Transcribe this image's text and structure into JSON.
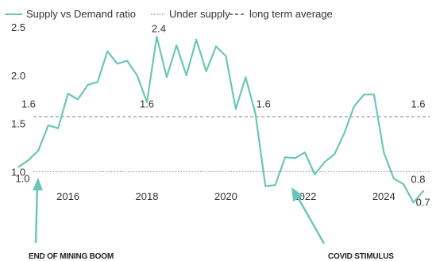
{
  "chart_data": {
    "type": "line",
    "title": "",
    "xlabel": "",
    "ylabel": "",
    "xlim": [
      2014.6,
      2025.0
    ],
    "ylim": [
      0.6,
      2.6
    ],
    "yticks": [
      {
        "value": 1.0,
        "label": "1.0"
      },
      {
        "value": 1.5,
        "label": "1.5"
      },
      {
        "value": 2.0,
        "label": "2.0"
      },
      {
        "value": 2.5,
        "label": "2.5"
      }
    ],
    "xticks": [
      {
        "value": 2016,
        "label": "2016"
      },
      {
        "value": 2018,
        "label": "2018"
      },
      {
        "value": 2020,
        "label": "2020"
      },
      {
        "value": 2022,
        "label": "2022"
      },
      {
        "value": 2024,
        "label": "2024"
      }
    ],
    "grid": false,
    "legend": {
      "placement": "top-left",
      "entries": [
        {
          "label": "Supply vs Demand ratio",
          "style": "solid",
          "color": "#6cc6b8"
        },
        {
          "label": "Under supply",
          "style": "dotted",
          "color": "#9a9a9a"
        },
        {
          "label": "long term average",
          "style": "dashed",
          "color": "#555555"
        }
      ]
    },
    "reference_lines": [
      {
        "name": "long term average",
        "value": 1.57,
        "style": "dashed",
        "color": "#9a9a9a"
      },
      {
        "name": "Under supply",
        "value": 1.0,
        "style": "dotted",
        "color": "#9a9a9a"
      }
    ],
    "series": [
      {
        "name": "Supply vs Demand ratio",
        "color": "#6cc6b8",
        "points": [
          [
            2014.75,
            1.05
          ],
          [
            2015.0,
            1.12
          ],
          [
            2015.25,
            1.22
          ],
          [
            2015.5,
            1.48
          ],
          [
            2015.75,
            1.45
          ],
          [
            2016.0,
            1.81
          ],
          [
            2016.25,
            1.75
          ],
          [
            2016.5,
            1.9
          ],
          [
            2016.75,
            1.93
          ],
          [
            2017.0,
            2.25
          ],
          [
            2017.25,
            2.12
          ],
          [
            2017.5,
            2.15
          ],
          [
            2017.75,
            2.0
          ],
          [
            2018.0,
            1.72
          ],
          [
            2018.25,
            2.4
          ],
          [
            2018.5,
            1.98
          ],
          [
            2018.75,
            2.31
          ],
          [
            2019.0,
            2.0
          ],
          [
            2019.25,
            2.37
          ],
          [
            2019.5,
            2.04
          ],
          [
            2019.75,
            2.3
          ],
          [
            2020.0,
            2.2
          ],
          [
            2020.25,
            1.65
          ],
          [
            2020.5,
            1.98
          ],
          [
            2020.75,
            1.6
          ],
          [
            2021.0,
            0.85
          ],
          [
            2021.25,
            0.86
          ],
          [
            2021.5,
            1.15
          ],
          [
            2021.75,
            1.14
          ],
          [
            2022.0,
            1.2
          ],
          [
            2022.25,
            0.97
          ],
          [
            2022.5,
            1.1
          ],
          [
            2022.75,
            1.18
          ],
          [
            2023.0,
            1.4
          ],
          [
            2023.25,
            1.68
          ],
          [
            2023.5,
            1.8
          ],
          [
            2023.75,
            1.8
          ],
          [
            2024.0,
            1.2
          ],
          [
            2024.25,
            0.93
          ],
          [
            2024.5,
            0.87
          ],
          [
            2024.75,
            0.68
          ],
          [
            2025.0,
            0.8
          ]
        ]
      }
    ],
    "data_labels": [
      {
        "text": "1.6",
        "x": 2015.0,
        "y": 1.6
      },
      {
        "text": "1.6",
        "x": 2018.0,
        "y": 1.6
      },
      {
        "text": "1.6",
        "x": 2020.95,
        "y": 1.6
      },
      {
        "text": "1.6",
        "x": 2025.05,
        "y": 1.6
      },
      {
        "text": "2.4",
        "x": 2018.3,
        "y": 2.4
      },
      {
        "text": "1.0",
        "x": 2014.75,
        "y": 1.0
      },
      {
        "text": "0.8",
        "x": 2025.05,
        "y": 0.8
      },
      {
        "text": "0.7",
        "x": 2024.75,
        "y": 0.68
      }
    ],
    "annotations": [
      {
        "text": "END OF MINING BOOM",
        "points_to": {
          "x": 2014.75,
          "y": 1.0
        }
      },
      {
        "text": "COVID STIMULUS",
        "points_to": {
          "x": 2021.0,
          "y": 0.85
        }
      }
    ]
  }
}
